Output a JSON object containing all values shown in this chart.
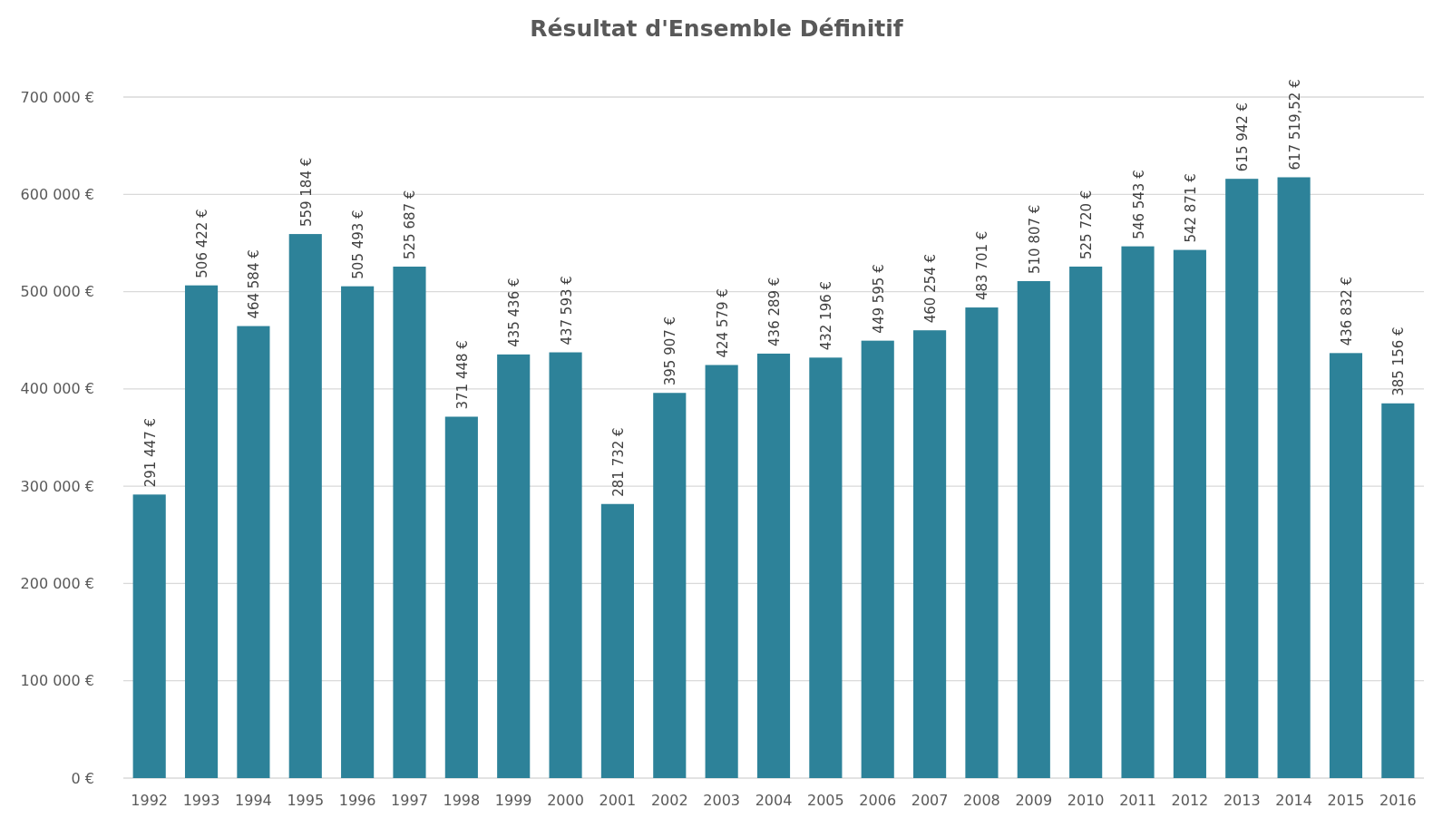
{
  "chart_data": {
    "type": "bar",
    "title": "Résultat d'Ensemble Définitif",
    "categories": [
      "1992",
      "1993",
      "1994",
      "1995",
      "1996",
      "1997",
      "1998",
      "1999",
      "2000",
      "2001",
      "2002",
      "2003",
      "2004",
      "2005",
      "2006",
      "2007",
      "2008",
      "2009",
      "2010",
      "2011",
      "2012",
      "2013",
      "2014",
      "2015",
      "2016"
    ],
    "values": [
      291447,
      506422,
      464584,
      559184,
      505493,
      525687,
      371448,
      435436,
      437593,
      281732,
      395907,
      424579,
      436289,
      432196,
      449595,
      460254,
      483701,
      510807,
      525720,
      546543,
      542871,
      615942,
      617519.52,
      436832,
      385156
    ],
    "value_labels": [
      "291 447 €",
      "506 422 €",
      "464 584 €",
      "559 184 €",
      "505 493 €",
      "525 687 €",
      "371 448 €",
      "435 436 €",
      "437 593 €",
      "281 732 €",
      "395 907 €",
      "424 579 €",
      "436 289 €",
      "432 196 €",
      "449 595 €",
      "460 254 €",
      "483 701 €",
      "510 807 €",
      "525 720 €",
      "546 543 €",
      "542 871 €",
      "615 942 €",
      "617 519,52 €",
      "436 832 €",
      "385 156 €"
    ],
    "color": "#2d8299",
    "ylim": [
      0,
      700000
    ],
    "yticks": [
      {
        "value": 0,
        "label": "0 €"
      },
      {
        "value": 100000,
        "label": "100 000 €"
      },
      {
        "value": 200000,
        "label": "200 000 €"
      },
      {
        "value": 300000,
        "label": "300 000 €"
      },
      {
        "value": 400000,
        "label": "400 000 €"
      },
      {
        "value": 500000,
        "label": "500 000 €"
      },
      {
        "value": 600000,
        "label": "600 000 €"
      },
      {
        "value": 700000,
        "label": "700 000 €"
      }
    ],
    "grid": true
  }
}
